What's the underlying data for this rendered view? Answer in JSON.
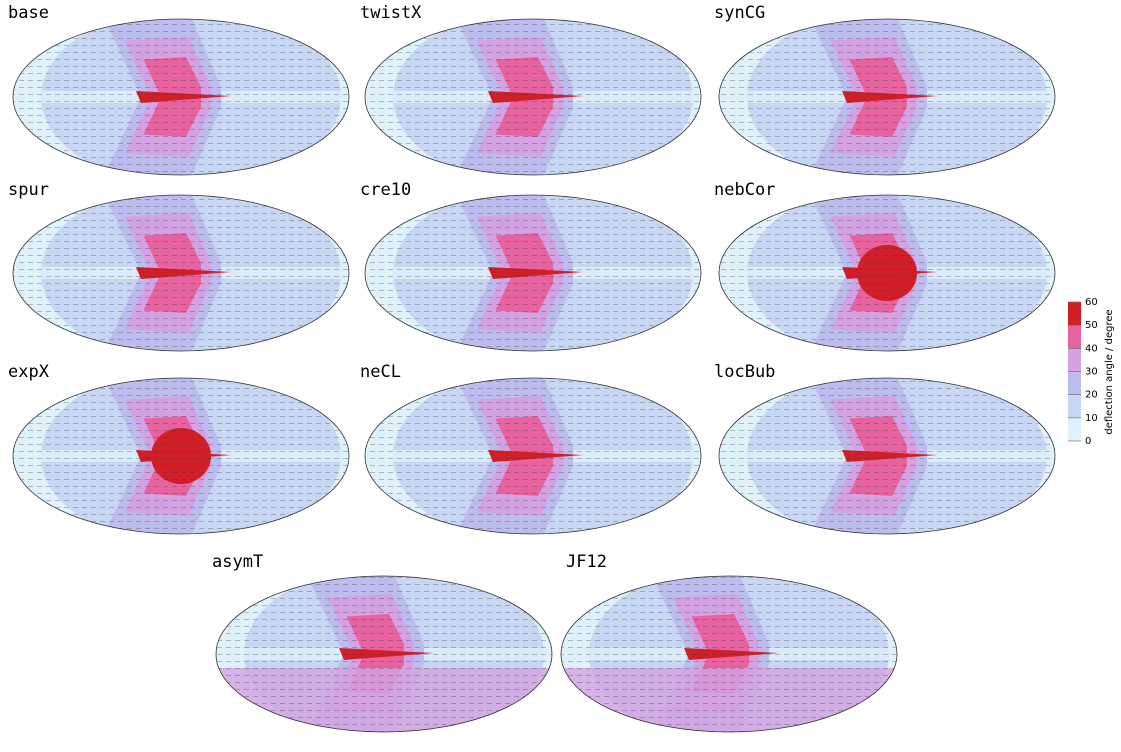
{
  "panels": [
    {
      "label": "base"
    },
    {
      "label": "twistX"
    },
    {
      "label": "synCG"
    },
    {
      "label": "spur"
    },
    {
      "label": "cre10"
    },
    {
      "label": "nebCor"
    },
    {
      "label": "expX"
    },
    {
      "label": "neCL"
    },
    {
      "label": "locBub"
    },
    {
      "label": "asymT"
    },
    {
      "label": "JF12"
    }
  ],
  "colorbar": {
    "label": "deflection angle / degree",
    "lim": [
      0,
      60
    ],
    "ticks": [
      0,
      10,
      20,
      30,
      40,
      50,
      60
    ],
    "colors": [
      "#dff1fb",
      "#c6d6f3",
      "#bcbcee",
      "#d3a2e2",
      "#e6639f",
      "#d01f27"
    ]
  }
}
